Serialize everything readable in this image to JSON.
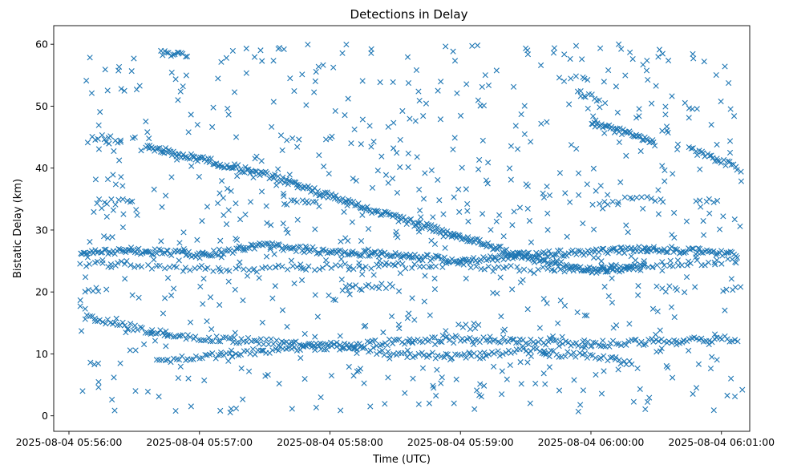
{
  "chart_data": {
    "type": "scatter",
    "title": "Detections in Delay",
    "xlabel": "Time (UTC)",
    "ylabel": "Bistatic Delay (km)",
    "marker": "x",
    "marker_color": "#1f77b4",
    "grid": false,
    "xlim": [
      "2025-08-04 05:55:53",
      "2025-08-04 06:01:13"
    ],
    "ylim": [
      -2.5,
      63
    ],
    "xticks": [
      "2025-08-04 05:56:00",
      "2025-08-04 05:57:00",
      "2025-08-04 05:58:00",
      "2025-08-04 05:59:00",
      "2025-08-04 06:00:00",
      "2025-08-04 06:01:00"
    ],
    "yticks": [
      0,
      10,
      20,
      30,
      40,
      50,
      60
    ],
    "tracks": [
      {
        "points": [
          [
            "2025-08-04 05:56:07",
            16.0
          ],
          [
            "2025-08-04 05:56:40",
            13.5
          ],
          [
            "2025-08-04 05:57:00",
            12.5
          ],
          [
            "2025-08-04 05:57:30",
            12.0
          ],
          [
            "2025-08-04 05:58:00",
            11.0
          ],
          [
            "2025-08-04 05:58:30",
            12.0
          ],
          [
            "2025-08-04 05:59:00",
            12.5
          ],
          [
            "2025-08-04 05:59:30",
            12.0
          ],
          [
            "2025-08-04 06:00:00",
            11.5
          ],
          [
            "2025-08-04 06:00:30",
            12.0
          ],
          [
            "2025-08-04 06:01:08",
            12.5
          ]
        ],
        "count": 260
      },
      {
        "points": [
          [
            "2025-08-04 05:56:40",
            9.0
          ],
          [
            "2025-08-04 05:57:00",
            9.5
          ],
          [
            "2025-08-04 05:57:30",
            10.5
          ],
          [
            "2025-08-04 05:58:00",
            11.5
          ],
          [
            "2025-08-04 05:58:30",
            10.0
          ],
          [
            "2025-08-04 05:59:00",
            9.5
          ],
          [
            "2025-08-04 05:59:30",
            10.5
          ],
          [
            "2025-08-04 06:00:00",
            9.5
          ],
          [
            "2025-08-04 06:00:20",
            8.5
          ]
        ],
        "count": 170
      },
      {
        "points": [
          [
            "2025-08-04 05:56:35",
            43.5
          ],
          [
            "2025-08-04 05:57:00",
            41.5
          ],
          [
            "2025-08-04 05:57:30",
            39.0
          ],
          [
            "2025-08-04 05:58:00",
            35.5
          ],
          [
            "2025-08-04 05:58:30",
            32.0
          ],
          [
            "2025-08-04 05:59:00",
            29.0
          ],
          [
            "2025-08-04 05:59:30",
            25.5
          ],
          [
            "2025-08-04 06:00:00",
            23.5
          ],
          [
            "2025-08-04 06:00:25",
            24.0
          ]
        ],
        "count": 320
      },
      {
        "points": [
          [
            "2025-08-04 05:56:05",
            26.5
          ],
          [
            "2025-08-04 05:56:40",
            26.5
          ],
          [
            "2025-08-04 05:57:00",
            26.0
          ],
          [
            "2025-08-04 05:57:30",
            27.5
          ],
          [
            "2025-08-04 05:58:00",
            26.5
          ],
          [
            "2025-08-04 05:58:30",
            26.0
          ],
          [
            "2025-08-04 05:59:00",
            25.0
          ],
          [
            "2025-08-04 05:59:30",
            26.0
          ],
          [
            "2025-08-04 06:00:00",
            26.5
          ],
          [
            "2025-08-04 06:00:30",
            27.0
          ],
          [
            "2025-08-04 06:01:08",
            26.0
          ]
        ],
        "count": 360
      },
      {
        "points": [
          [
            "2025-08-04 05:56:05",
            24.5
          ],
          [
            "2025-08-04 05:56:30",
            24.5
          ],
          [
            "2025-08-04 05:57:00",
            23.5
          ],
          [
            "2025-08-04 05:59:00",
            24.5
          ],
          [
            "2025-08-04 05:59:30",
            23.5
          ],
          [
            "2025-08-04 06:00:00",
            23.5
          ],
          [
            "2025-08-04 06:00:30",
            24.5
          ],
          [
            "2025-08-04 06:01:08",
            25.0
          ]
        ],
        "count": 150
      },
      {
        "points": [
          [
            "2025-08-04 06:00:00",
            47.5
          ],
          [
            "2025-08-04 06:00:30",
            44.0
          ]
        ],
        "count": 45
      },
      {
        "points": [
          [
            "2025-08-04 06:00:45",
            43.0
          ],
          [
            "2025-08-04 06:01:08",
            40.0
          ]
        ],
        "count": 25
      },
      {
        "points": [
          [
            "2025-08-04 05:56:42",
            58.5
          ],
          [
            "2025-08-04 05:56:55",
            58.0
          ]
        ],
        "count": 14
      },
      {
        "points": [
          [
            "2025-08-04 05:56:10",
            45.0
          ],
          [
            "2025-08-04 05:56:25",
            44.5
          ]
        ],
        "count": 10
      },
      {
        "points": [
          [
            "2025-08-04 05:56:12",
            34.5
          ],
          [
            "2025-08-04 05:56:30",
            34.5
          ]
        ],
        "count": 10
      },
      {
        "points": [
          [
            "2025-08-04 05:57:38",
            34.5
          ],
          [
            "2025-08-04 05:57:55",
            34.5
          ]
        ],
        "count": 10
      },
      {
        "points": [
          [
            "2025-08-04 05:58:05",
            20.5
          ],
          [
            "2025-08-04 05:58:30",
            21.0
          ]
        ],
        "count": 16
      },
      {
        "points": [
          [
            "2025-08-04 05:59:55",
            52.0
          ],
          [
            "2025-08-04 06:00:05",
            51.0
          ]
        ],
        "count": 8
      },
      {
        "points": [
          [
            "2025-08-04 05:59:45",
            54.5
          ],
          [
            "2025-08-04 06:00:00",
            54.5
          ]
        ],
        "count": 6
      },
      {
        "points": [
          [
            "2025-08-04 06:00:00",
            34.5
          ],
          [
            "2025-08-04 06:00:15",
            34.5
          ]
        ],
        "count": 6
      },
      {
        "points": [
          [
            "2025-08-04 06:00:15",
            35.0
          ],
          [
            "2025-08-04 06:00:35",
            35.0
          ]
        ],
        "count": 10
      },
      {
        "points": [
          [
            "2025-08-04 06:00:50",
            34.5
          ],
          [
            "2025-08-04 06:01:00",
            34.5
          ]
        ],
        "count": 5
      },
      {
        "points": [
          [
            "2025-08-04 05:59:00",
            14.5
          ],
          [
            "2025-08-04 05:59:10",
            14.5
          ]
        ],
        "count": 5
      },
      {
        "points": [
          [
            "2025-08-04 06:01:00",
            20.5
          ],
          [
            "2025-08-04 06:01:10",
            21.0
          ]
        ],
        "count": 5
      },
      {
        "points": [
          [
            "2025-08-04 06:00:30",
            20.5
          ],
          [
            "2025-08-04 06:00:40",
            20.5
          ]
        ],
        "count": 5
      },
      {
        "points": [
          [
            "2025-08-04 05:56:07",
            20.5
          ],
          [
            "2025-08-04 05:56:15",
            20.5
          ]
        ],
        "count": 5
      }
    ],
    "scatter_noise": {
      "x_range": [
        "2025-08-04 05:56:05",
        "2025-08-04 06:01:10"
      ],
      "y_range": [
        0.5,
        60
      ],
      "count": 760
    }
  }
}
